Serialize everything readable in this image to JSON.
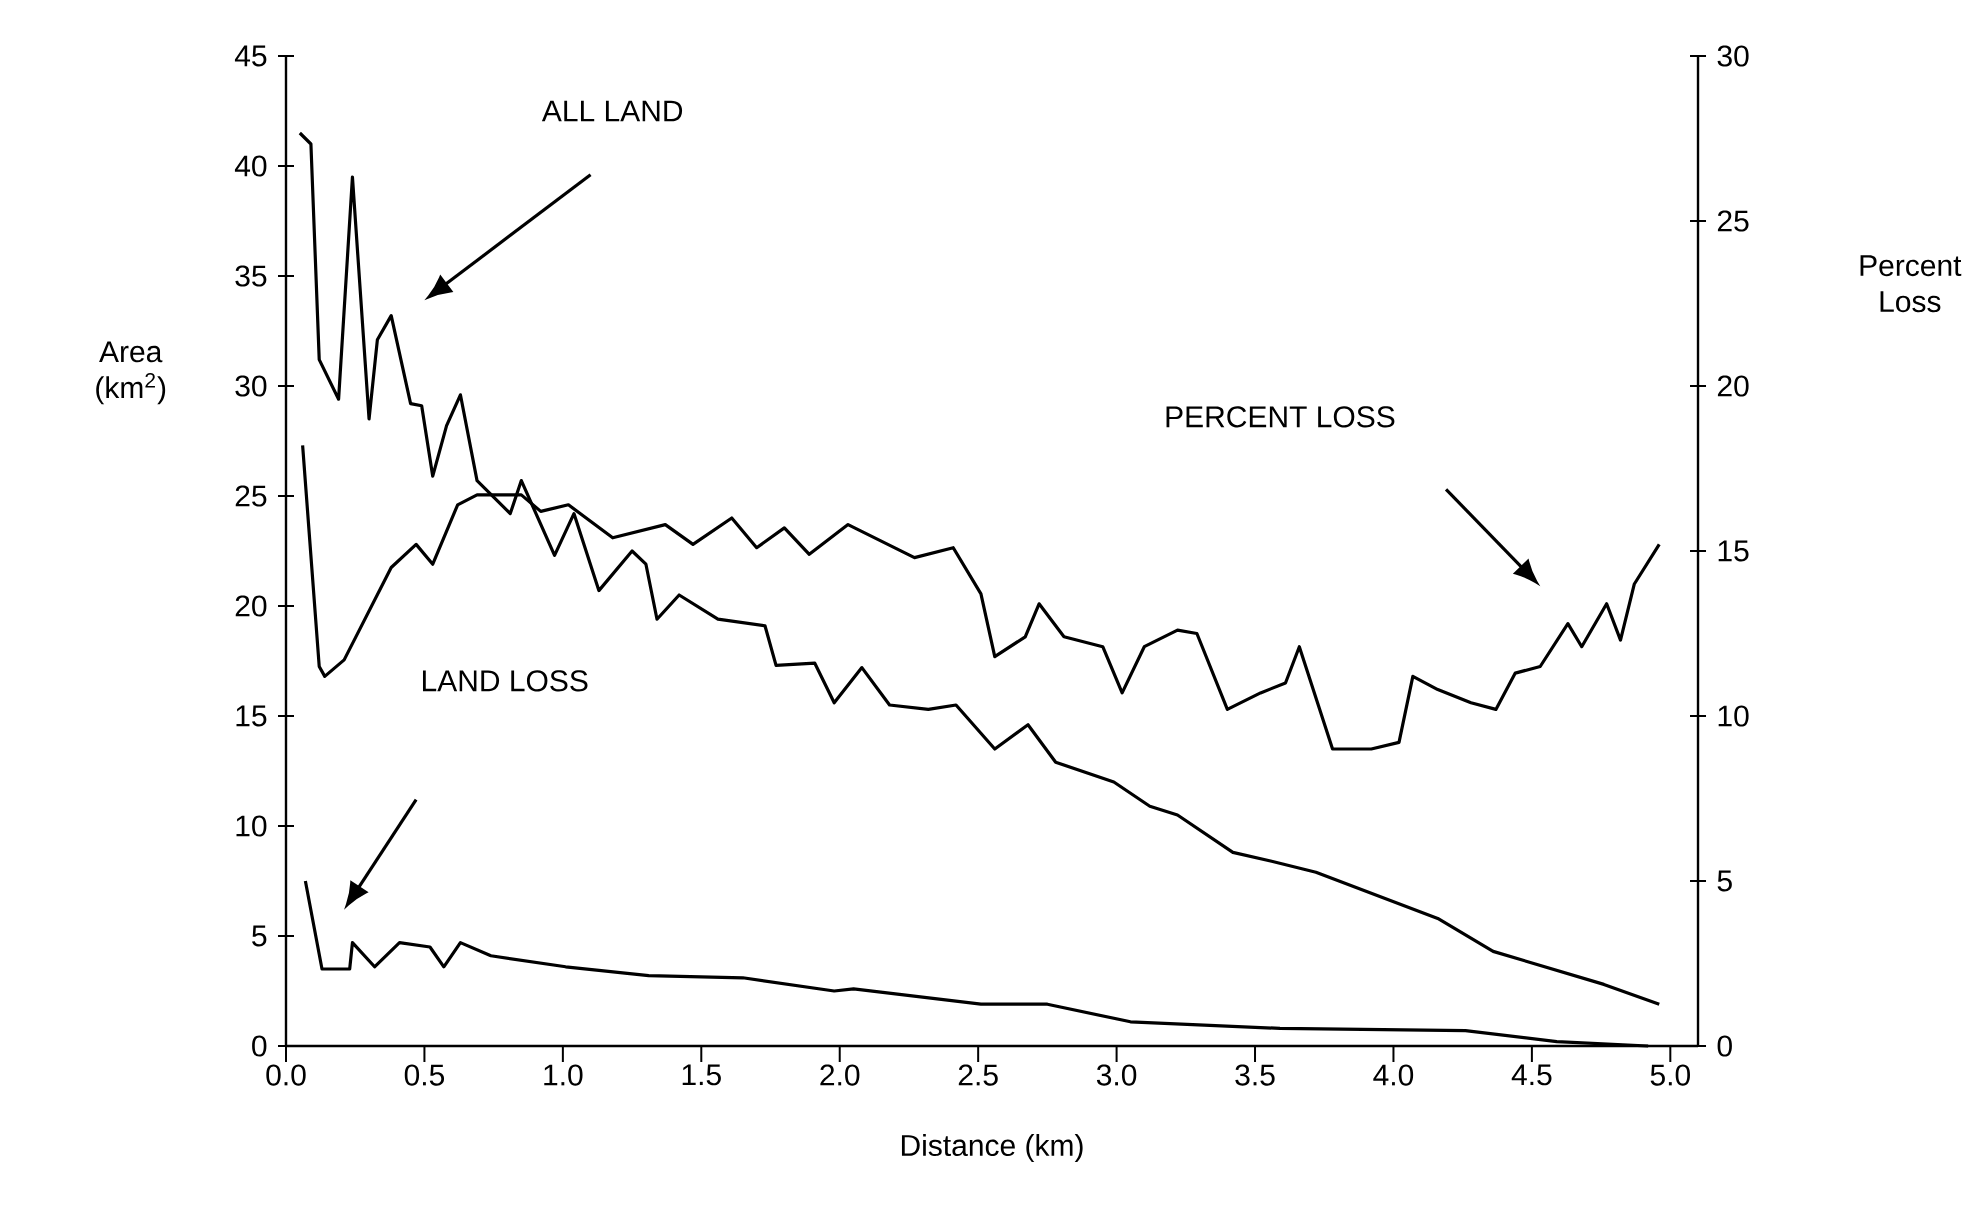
{
  "chart_data": {
    "type": "line",
    "xlabel": "Distance (km)",
    "ylabel": "Area (km$^{2}$)",
    "y2label": "Percent Loss",
    "xlim": [
      0,
      5.1
    ],
    "ylim": [
      0,
      45
    ],
    "y2lim": [
      0,
      30
    ],
    "xticks": [
      {
        "value": 0,
        "label": "0.0"
      },
      {
        "value": 0.5,
        "label": "0.5"
      },
      {
        "value": 1,
        "label": "1.0"
      },
      {
        "value": 1.5,
        "label": "1.5"
      },
      {
        "value": 2,
        "label": "2.0"
      },
      {
        "value": 2.5,
        "label": "2.5"
      },
      {
        "value": 3,
        "label": "3.0"
      },
      {
        "value": 3.5,
        "label": "3.5"
      },
      {
        "value": 4,
        "label": "4.0"
      },
      {
        "value": 4.5,
        "label": "4.5"
      },
      {
        "value": 5,
        "label": "5.0"
      }
    ],
    "yticks": [
      0,
      5,
      10,
      15,
      20,
      25,
      30,
      35,
      40,
      45
    ],
    "y2ticks": [
      0,
      5,
      10,
      15,
      20,
      25,
      30
    ],
    "annotations": [
      "ALL LAND",
      "LAND LOSS",
      "PERCENT LOSS"
    ],
    "series": [
      {
        "color": "#000000",
        "x": [
          0.05,
          0.09,
          0.12,
          0.19,
          0.24,
          0.3,
          0.33,
          0.38,
          0.45,
          0.49,
          0.53,
          0.58,
          0.63,
          0.69,
          0.81,
          0.85,
          0.97,
          1.04,
          1.13,
          1.25,
          1.3,
          1.34,
          1.42,
          1.56,
          1.73,
          1.77,
          1.91,
          1.98,
          2.08,
          2.18,
          2.32,
          2.42,
          2.56,
          2.68,
          2.78,
          2.99,
          3.12,
          3.22,
          3.42,
          3.56,
          3.72,
          4.16,
          4.36,
          4.76,
          4.96
        ],
        "values": [
          41.5,
          41,
          31.2,
          29.4,
          39.5,
          28.5,
          32.1,
          33.2,
          29.2,
          29.1,
          25.9,
          28.2,
          29.6,
          25.7,
          24.2,
          25.7,
          22.3,
          24.2,
          20.7,
          22.5,
          21.9,
          19.4,
          20.5,
          19.4,
          19.1,
          17.3,
          17.4,
          15.6,
          17.2,
          15.5,
          15.3,
          15.5,
          13.5,
          14.6,
          12.9,
          12.0,
          10.9,
          10.5,
          8.8,
          8.4,
          7.9,
          5.8,
          4.3,
          2.8,
          1.9
        ]
      },
      {
        "color": "#000000",
        "x": [
          0.07,
          0.13,
          0.23,
          0.24,
          0.32,
          0.41,
          0.52,
          0.57,
          0.63,
          0.74,
          1.01,
          1.31,
          1.65,
          1.98,
          2.05,
          2.51,
          2.75,
          3.05,
          3.59,
          4.26,
          4.59,
          4.92
        ],
        "values": [
          7.5,
          3.5,
          3.5,
          4.7,
          3.6,
          4.7,
          4.5,
          3.6,
          4.7,
          4.1,
          3.6,
          3.2,
          3.1,
          2.5,
          2.6,
          1.9,
          1.9,
          1.1,
          0.8,
          0.7,
          0.2,
          0.0
        ]
      },
      {
        "color": "#000000",
        "axis": "y2",
        "x": [
          0.06,
          0.12,
          0.14,
          0.21,
          0.38,
          0.47,
          0.53,
          0.62,
          0.69,
          0.85,
          0.92,
          1.02,
          1.18,
          1.37,
          1.47,
          1.61,
          1.7,
          1.8,
          1.89,
          2.03,
          2.27,
          2.41,
          2.51,
          2.56,
          2.67,
          2.72,
          2.81,
          2.95,
          3.02,
          3.1,
          3.22,
          3.29,
          3.4,
          3.52,
          3.61,
          3.66,
          3.78,
          3.92,
          4.02,
          4.07,
          4.16,
          4.28,
          4.37,
          4.44,
          4.53,
          4.63,
          4.68,
          4.77,
          4.82,
          4.87,
          4.96
        ],
        "values": [
          18.2,
          11.5,
          11.2,
          11.7,
          14.5,
          15.2,
          14.6,
          16.4,
          16.7,
          16.7,
          16.2,
          16.4,
          15.4,
          15.8,
          15.2,
          16.0,
          15.1,
          15.7,
          14.9,
          15.8,
          14.8,
          15.1,
          13.7,
          11.8,
          12.4,
          13.4,
          12.4,
          12.1,
          10.7,
          12.1,
          12.6,
          12.5,
          10.2,
          10.7,
          11.0,
          12.1,
          9.0,
          9.0,
          9.2,
          11.2,
          10.8,
          10.4,
          10.2,
          11.3,
          11.5,
          12.8,
          12.1,
          13.4,
          12.3,
          14.0,
          15.2
        ]
      }
    ]
  }
}
